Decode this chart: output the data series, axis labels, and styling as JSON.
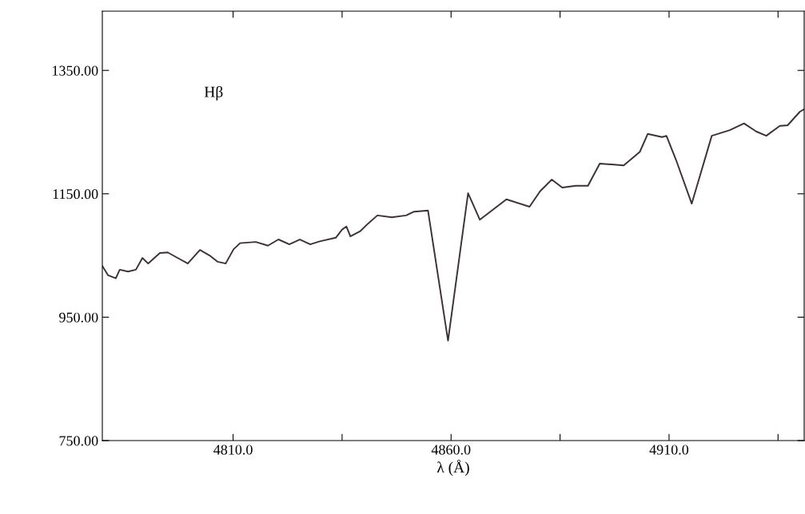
{
  "chart_data": {
    "type": "line",
    "xlabel": "λ (Å)",
    "annotations": [
      "Hβ"
    ],
    "x": [
      4780,
      4781.3,
      4783.1,
      4784.0,
      4785.9,
      4787.7,
      4789.2,
      4790.5,
      4793.2,
      4795.0,
      4797.8,
      4799.6,
      4802.4,
      4804.6,
      4806.4,
      4808.3,
      4810.1,
      4811.6,
      4815.2,
      4818.0,
      4820.4,
      4822.9,
      4825.3,
      4827.7,
      4829.9,
      4833.6,
      4835.0,
      4836.0,
      4836.9,
      4839.1,
      4841.0,
      4843.1,
      4846.4,
      4849.7,
      4851.5,
      4854.7,
      4859.3,
      4863.9,
      4866.6,
      4872.7,
      4878.0,
      4880.4,
      4883.1,
      4885.5,
      4888.6,
      4891.4,
      4894.1,
      4899.6,
      4903.3,
      4905.1,
      4908.4,
      4909.4,
      4911.6,
      4915.2,
      4919.8,
      4923.9,
      4927.2,
      4930.0,
      4932.3,
      4935.4,
      4937.2,
      4940.0,
      4941.0
    ],
    "series": [
      {
        "color": "#3c3236",
        "values": [
          1033,
          1018,
          1013,
          1027,
          1024,
          1027,
          1046,
          1037,
          1054,
          1055,
          1044,
          1037,
          1059,
          1050,
          1040,
          1037,
          1060,
          1070,
          1072,
          1066,
          1076,
          1068,
          1076,
          1068,
          1073,
          1079,
          1092,
          1097,
          1081,
          1089,
          1102,
          1115,
          1112,
          1115,
          1121,
          1123,
          912,
          1151,
          1108,
          1141,
          1129,
          1154,
          1173,
          1160,
          1163,
          1163,
          1199,
          1196,
          1218,
          1247,
          1242,
          1244,
          1205,
          1134,
          1244,
          1253,
          1264,
          1251,
          1244,
          1260,
          1261,
          1283,
          1287
        ]
      }
    ],
    "xlim": [
      4780,
      4941
    ],
    "ylim": [
      750,
      1446
    ],
    "xticks": [
      {
        "value": 4810,
        "label": "4810.0"
      },
      {
        "value": 4835,
        "label": null
      },
      {
        "value": 4860,
        "label": "4860.0"
      },
      {
        "value": 4885,
        "label": null
      },
      {
        "value": 4910,
        "label": "4910.0"
      },
      {
        "value": 4935,
        "label": null
      }
    ],
    "yticks": [
      {
        "value": 750,
        "label": "750.00"
      },
      {
        "value": 950,
        "label": "950.00"
      },
      {
        "value": 1150,
        "label": "1150.00"
      },
      {
        "value": 1350,
        "label": "1350.00"
      }
    ],
    "grid": false,
    "legend": false
  }
}
